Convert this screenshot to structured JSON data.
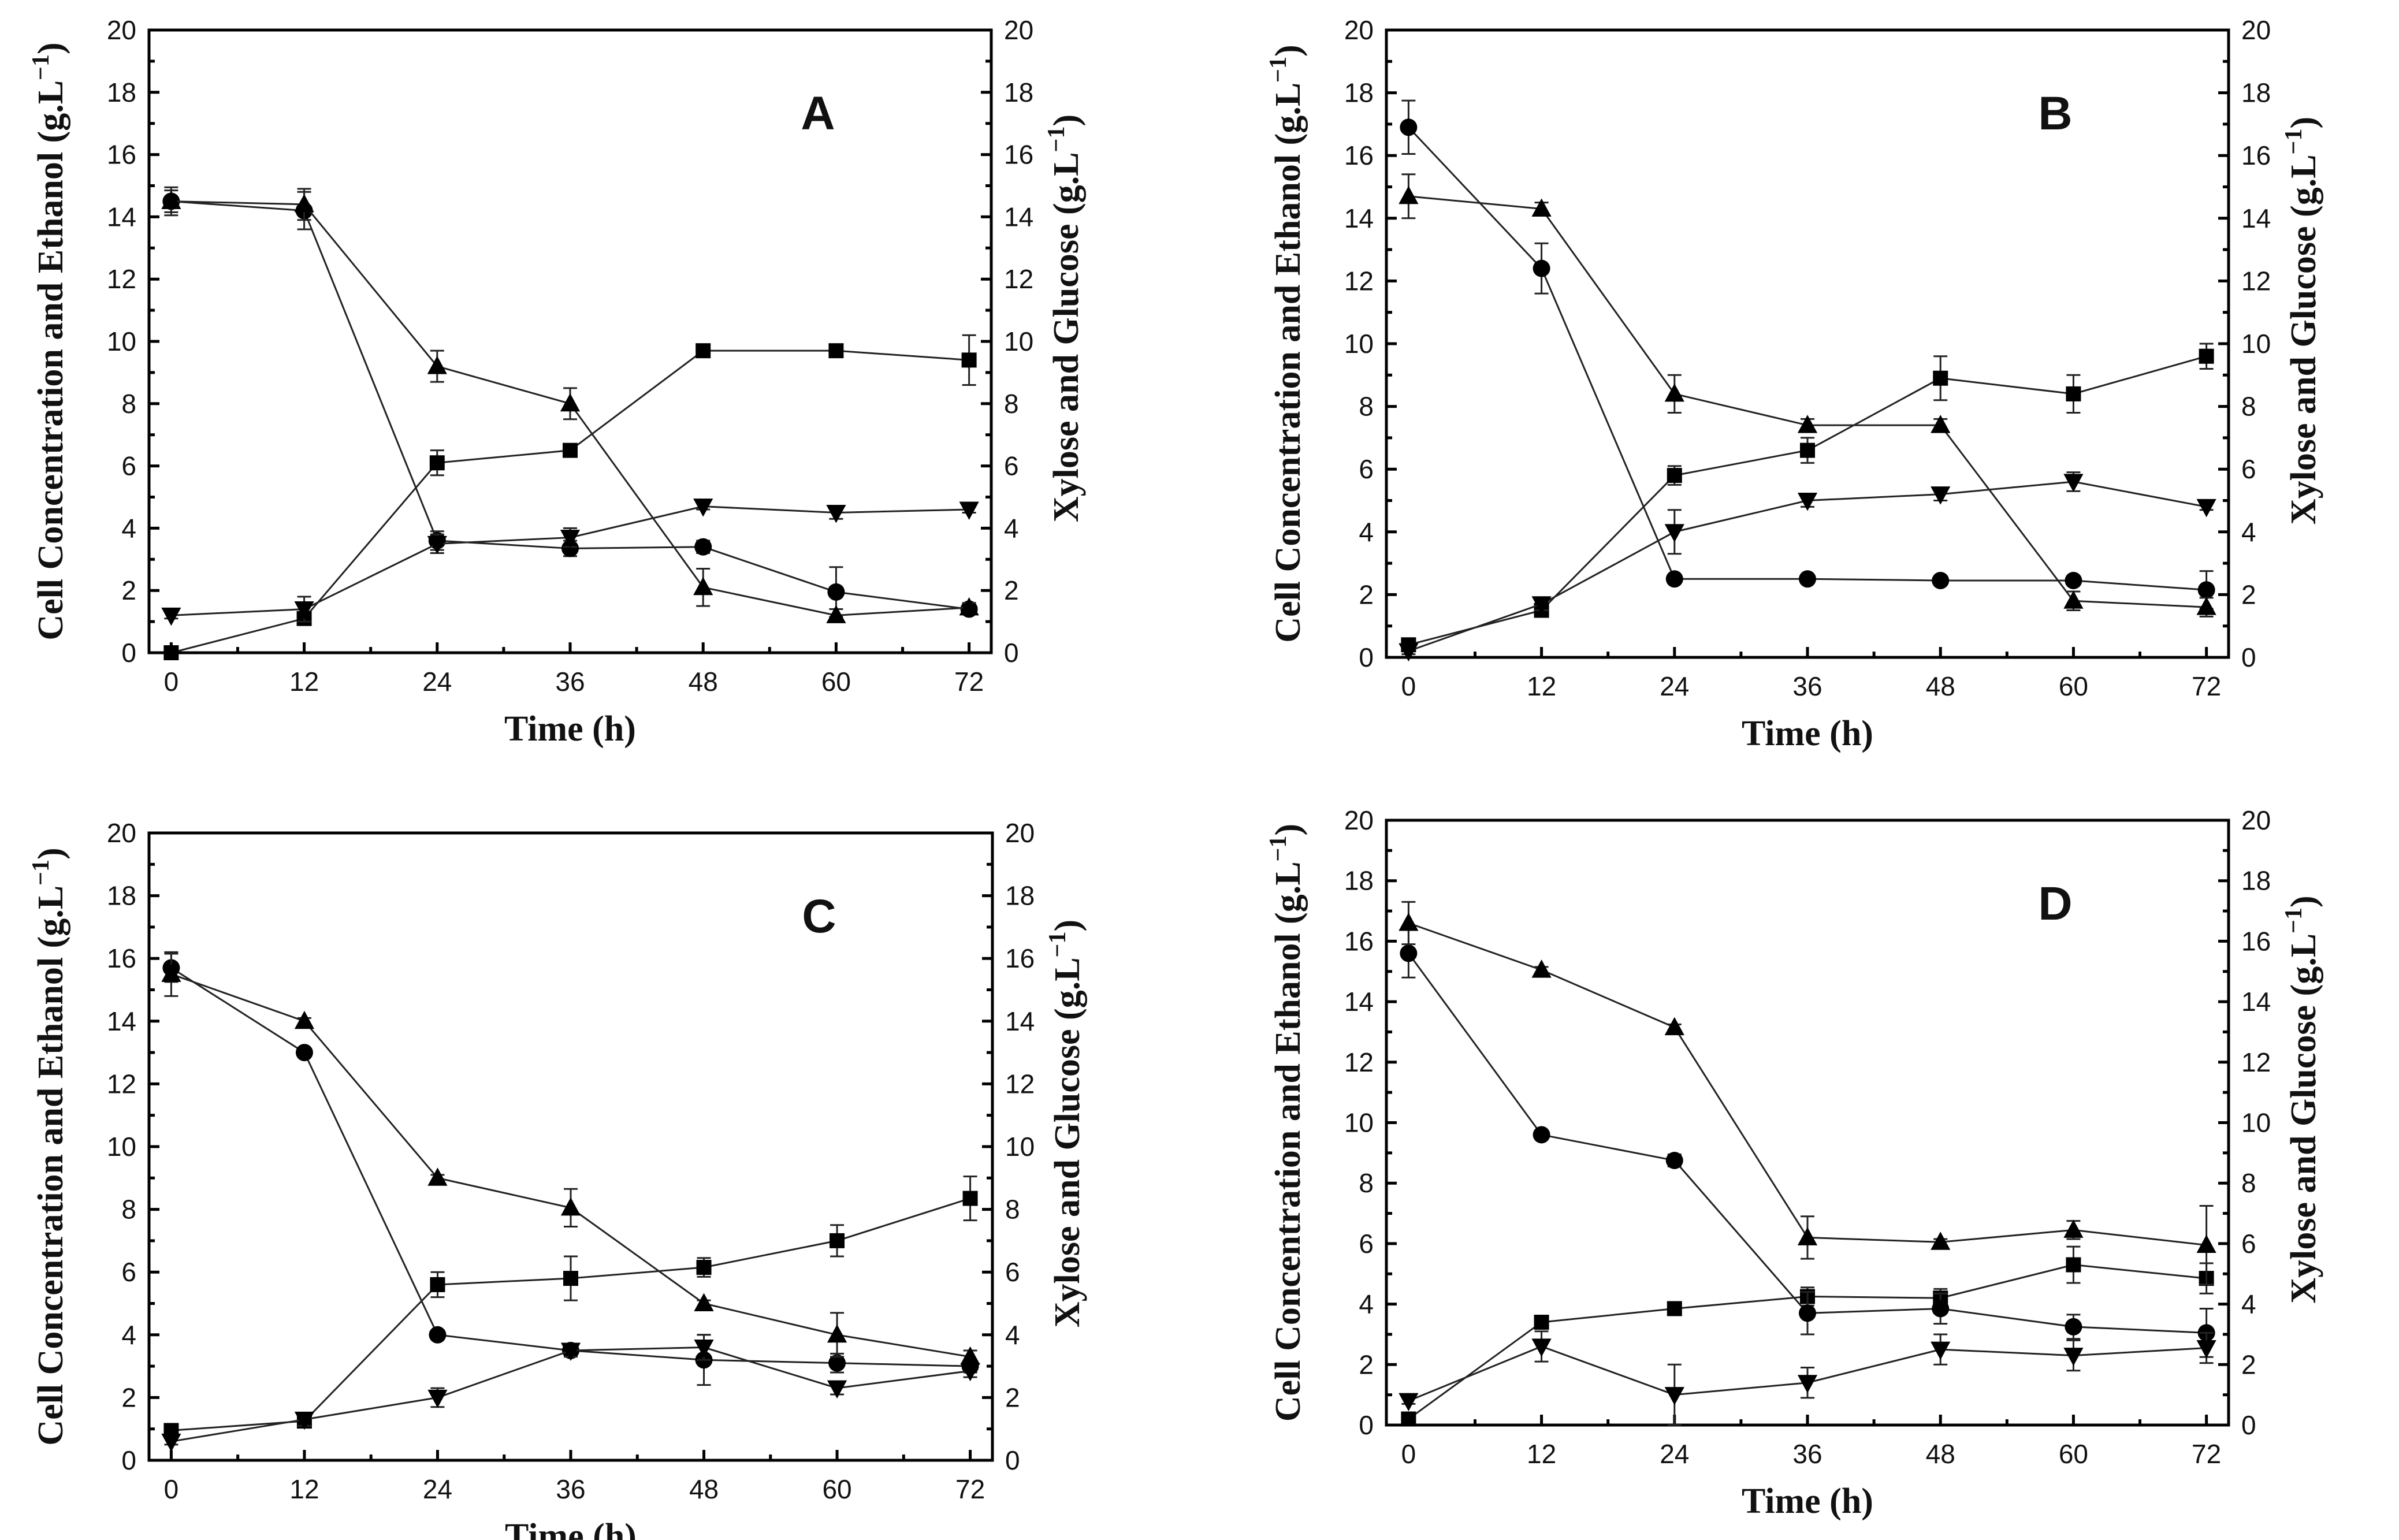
{
  "figure": {
    "left_axis_label": "Cell Concentration and Ethanol (g.L",
    "right_axis_label": "Xylose and Glucose (g.L",
    "axis_unit_exponent": "−1",
    "x_axis_label": "Time (h)",
    "x_ticks": [
      "0",
      "12",
      "24",
      "36",
      "48",
      "60",
      "72"
    ],
    "y_ticks": [
      "0",
      "2",
      "4",
      "6",
      "8",
      "10",
      "12",
      "14",
      "16",
      "18",
      "20"
    ]
  },
  "chart_data": [
    {
      "panel": "A",
      "type": "line",
      "xlabel": "Time (h)",
      "ylabel_left": "Cell Concentration and Ethanol (g.L−1)",
      "ylabel_right": "Xylose and Glucose (g.L−1)",
      "x": [
        0,
        12,
        24,
        36,
        48,
        60,
        72
      ],
      "ylim": [
        0,
        20
      ],
      "xlim": [
        -2,
        74
      ],
      "series": [
        {
          "name": "square",
          "marker": "square",
          "values": [
            0.0,
            1.1,
            6.1,
            6.5,
            9.7,
            9.7,
            9.4
          ],
          "errors": [
            0.05,
            0.2,
            0.4,
            0.2,
            0.1,
            0.1,
            0.8
          ]
        },
        {
          "name": "circle",
          "marker": "circle",
          "values": [
            14.5,
            14.2,
            3.6,
            3.35,
            3.4,
            1.95,
            1.4
          ],
          "errors": [
            0.35,
            0.6,
            0.3,
            0.25,
            0.2,
            0.8,
            0.15
          ]
        },
        {
          "name": "triangle-up",
          "marker": "triangle-up",
          "values": [
            14.5,
            14.4,
            9.2,
            8.0,
            2.1,
            1.2,
            1.45
          ],
          "errors": [
            0.45,
            0.5,
            0.5,
            0.5,
            0.6,
            0.2,
            0.15
          ]
        },
        {
          "name": "triangle-down",
          "marker": "triangle-down",
          "values": [
            1.2,
            1.4,
            3.5,
            3.7,
            4.7,
            4.5,
            4.6
          ],
          "errors": [
            0.1,
            0.4,
            0.3,
            0.3,
            0.1,
            0.2,
            0.1
          ]
        }
      ]
    },
    {
      "panel": "B",
      "type": "line",
      "xlabel": "Time (h)",
      "ylabel_left": "Cell Concentration and Ethanol (g.L−1)",
      "ylabel_right": "Xylose and Glucose (g.L−1)",
      "x": [
        0,
        12,
        24,
        36,
        48,
        60,
        72
      ],
      "ylim": [
        0,
        20
      ],
      "xlim": [
        -2,
        74
      ],
      "series": [
        {
          "name": "square",
          "marker": "square",
          "values": [
            0.4,
            1.5,
            5.8,
            6.6,
            8.9,
            8.4,
            9.6
          ],
          "errors": [
            0.1,
            0.2,
            0.3,
            0.4,
            0.7,
            0.6,
            0.4
          ]
        },
        {
          "name": "circle",
          "marker": "circle",
          "values": [
            16.9,
            12.4,
            2.5,
            2.5,
            2.45,
            2.45,
            2.15
          ],
          "errors": [
            0.85,
            0.8,
            0.1,
            0.1,
            0.1,
            0.1,
            0.6
          ]
        },
        {
          "name": "triangle-up",
          "marker": "triangle-up",
          "values": [
            14.7,
            14.3,
            8.4,
            7.4,
            7.4,
            1.8,
            1.6
          ],
          "errors": [
            0.7,
            0.2,
            0.6,
            0.2,
            0.2,
            0.3,
            0.3
          ]
        },
        {
          "name": "triangle-down",
          "marker": "triangle-down",
          "values": [
            0.2,
            1.7,
            4.0,
            5.0,
            5.2,
            5.6,
            4.8
          ],
          "errors": [
            0.1,
            0.2,
            0.7,
            0.2,
            0.2,
            0.3,
            0.1
          ]
        }
      ]
    },
    {
      "panel": "C",
      "type": "line",
      "xlabel": "Time (h)",
      "ylabel_left": "Cell Concentration and Ethanol (g.L−1)",
      "ylabel_right": "Xylose and Glucose (g.L−1)",
      "x": [
        0,
        12,
        24,
        36,
        48,
        60,
        72
      ],
      "ylim": [
        0,
        20
      ],
      "xlim": [
        -2,
        74
      ],
      "series": [
        {
          "name": "square",
          "marker": "square",
          "values": [
            0.95,
            1.25,
            5.6,
            5.8,
            6.15,
            7.0,
            8.35
          ],
          "errors": [
            0.1,
            0.2,
            0.4,
            0.7,
            0.3,
            0.5,
            0.7
          ]
        },
        {
          "name": "circle",
          "marker": "circle",
          "values": [
            15.7,
            13.0,
            4.0,
            3.5,
            3.2,
            3.1,
            3.0
          ],
          "errors": [
            0.45,
            0.1,
            0.1,
            0.1,
            0.8,
            0.3,
            0.2
          ]
        },
        {
          "name": "triangle-up",
          "marker": "triangle-up",
          "values": [
            15.5,
            14.0,
            9.0,
            8.05,
            5.0,
            4.0,
            3.3
          ],
          "errors": [
            0.7,
            0.1,
            0.1,
            0.6,
            0.1,
            0.7,
            0.2
          ]
        },
        {
          "name": "triangle-down",
          "marker": "triangle-down",
          "values": [
            0.6,
            1.3,
            2.0,
            3.5,
            3.6,
            2.3,
            2.85
          ],
          "errors": [
            0.1,
            0.2,
            0.3,
            0.2,
            0.4,
            0.2,
            0.2
          ]
        }
      ]
    },
    {
      "panel": "D",
      "type": "line",
      "xlabel": "Time (h)",
      "ylabel_left": "Cell Concentration and Ethanol (g.L−1)",
      "ylabel_right": "Xylose and Glucose (g.L−1)",
      "x": [
        0,
        12,
        24,
        36,
        48,
        60,
        72
      ],
      "ylim": [
        0,
        20
      ],
      "xlim": [
        -2,
        74
      ],
      "series": [
        {
          "name": "square",
          "marker": "square",
          "values": [
            0.2,
            3.4,
            3.85,
            4.25,
            4.2,
            5.3,
            4.85
          ],
          "errors": [
            0.05,
            0.1,
            0.2,
            0.3,
            0.3,
            0.6,
            0.5
          ]
        },
        {
          "name": "circle",
          "marker": "circle",
          "values": [
            15.6,
            9.6,
            8.75,
            3.7,
            3.85,
            3.25,
            3.05
          ],
          "errors": [
            0.8,
            0.1,
            0.2,
            0.7,
            0.5,
            0.4,
            0.8
          ]
        },
        {
          "name": "triangle-up",
          "marker": "triangle-up",
          "values": [
            16.6,
            15.05,
            13.15,
            6.2,
            6.05,
            6.45,
            5.95
          ],
          "errors": [
            0.7,
            0.1,
            0.1,
            0.7,
            0.1,
            0.3,
            1.3
          ]
        },
        {
          "name": "triangle-down",
          "marker": "triangle-down",
          "values": [
            0.8,
            2.6,
            1.0,
            1.4,
            2.5,
            2.3,
            2.55
          ],
          "errors": [
            0.1,
            0.5,
            1.0,
            0.5,
            0.5,
            0.5,
            0.5
          ]
        }
      ]
    }
  ]
}
